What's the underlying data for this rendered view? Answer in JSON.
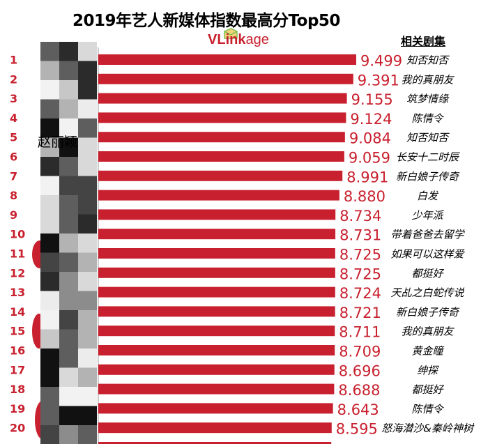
{
  "title": "2019年艺人新媒体指数最高分Top50",
  "logo": {
    "prefix": "VL",
    "middle": "ink",
    "suffix": "age"
  },
  "column_header": "相关剧集",
  "artist_label": "赵丽颖",
  "colors": {
    "bar": "#c8202e",
    "value_text": "#c8202e",
    "rank_text": "#c8202e",
    "drama_text": "#000000"
  },
  "chart_data": {
    "type": "bar",
    "orientation": "horizontal",
    "title": "2019年艺人新媒体指数最高分Top50",
    "xlabel": "",
    "ylabel": "",
    "legend": "none",
    "grid": false,
    "categories": [
      "1",
      "2",
      "3",
      "4",
      "5",
      "6",
      "7",
      "8",
      "9",
      "10",
      "11",
      "12",
      "13",
      "14",
      "15",
      "16",
      "17",
      "18",
      "19",
      "20"
    ],
    "values": [
      9.499,
      9.391,
      9.155,
      9.124,
      9.084,
      9.059,
      8.991,
      8.88,
      8.734,
      8.731,
      8.725,
      8.725,
      8.724,
      8.721,
      8.711,
      8.709,
      8.696,
      8.688,
      8.643,
      8.595
    ],
    "value_labels": [
      "9.499",
      "9.391",
      "9.155",
      "9.124",
      "9.084",
      "9.059",
      "8.991",
      "8.880",
      "8.734",
      "8.731",
      "8.725",
      "8.725",
      "8.724",
      "8.721",
      "8.711",
      "8.709",
      "8.696",
      "8.688",
      "8.643",
      "8.595"
    ],
    "dramas": [
      "知否知否",
      "我的真朋友",
      "筑梦情缘",
      "陈情令",
      "知否知否",
      "长安十二时辰",
      "新白娘子传奇",
      "白发",
      "少年派",
      "带着爸爸去留学",
      "如果可以这样爱",
      "都挺好",
      "天乩之白蛇传说",
      "新白娘子传奇",
      "我的真朋友",
      "黄金瞳",
      "绅探",
      "都挺好",
      "陈情令",
      "怒海潜沙&秦岭神树"
    ]
  }
}
